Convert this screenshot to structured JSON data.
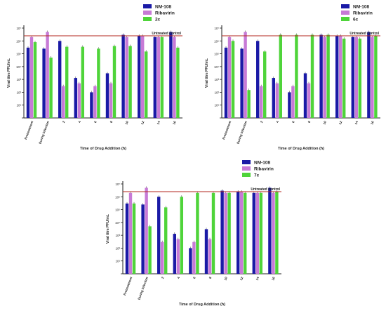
{
  "colors": {
    "nm108": "#1a1aa6",
    "ribavirin": "#c77ad6",
    "compound": "#4fd43a",
    "control": "#b3261e"
  },
  "chart_data": [
    {
      "type": "bar",
      "log_scale": true,
      "ylim": [
        1,
        10000000
      ],
      "yticks": [
        "10¹",
        "10²",
        "10³",
        "10⁴",
        "10⁵",
        "10⁶",
        "10⁷"
      ],
      "ylabel": "Viral titre PFU/mL",
      "xlabel": "Time of Drug Addition (h)",
      "categories": [
        "Pretreatment",
        "During infection",
        "2",
        "4",
        "6",
        "8",
        "10",
        "12",
        "14",
        "16"
      ],
      "reference_line": {
        "label": "Untreated control",
        "value": 2500000
      },
      "legend_position": "top-right",
      "series": [
        {
          "name": "NM-108",
          "values": [
            300000,
            250000,
            1000000,
            1300,
            100,
            3000,
            3000000,
            2500000,
            2000000,
            5000000
          ]
        },
        {
          "name": "Ribavirin",
          "values": [
            2000000,
            5000000,
            300,
            500,
            300,
            500,
            2000000,
            2500000,
            2000000,
            2000000
          ]
        },
        {
          "name": "2c",
          "values": [
            800000,
            50000,
            350000,
            350000,
            250000,
            400000,
            400000,
            150000,
            2000000,
            300000
          ]
        }
      ]
    },
    {
      "type": "bar",
      "log_scale": true,
      "ylim": [
        1,
        10000000
      ],
      "yticks": [
        "10¹",
        "10²",
        "10³",
        "10⁴",
        "10⁵",
        "10⁶",
        "10⁷"
      ],
      "ylabel": "Viral titre PFU/mL",
      "xlabel": "Time of Drug Addition (h)",
      "categories": [
        "Pretreatment",
        "During infection",
        "2",
        "4",
        "6",
        "8",
        "10",
        "12",
        "14",
        "16"
      ],
      "reference_line": {
        "label": "Untreated control",
        "value": 2500000
      },
      "legend_position": "top-right",
      "series": [
        {
          "name": "NM-108",
          "values": [
            300000,
            250000,
            1000000,
            1300,
            100,
            3000,
            3000000,
            2500000,
            2000000,
            5000000
          ]
        },
        {
          "name": "Ribavirin",
          "values": [
            2000000,
            5000000,
            300,
            500,
            300,
            500,
            2000000,
            2500000,
            2000000,
            2000000
          ]
        },
        {
          "name": "6c",
          "values": [
            1000000,
            150,
            150000,
            3000000,
            3000000,
            3000000,
            3000000,
            1500000,
            1500000,
            2500000
          ]
        }
      ]
    },
    {
      "type": "bar",
      "log_scale": true,
      "ylim": [
        1,
        10000000
      ],
      "yticks": [
        "10¹",
        "10²",
        "10³",
        "10⁴",
        "10⁵",
        "10⁶",
        "10⁷"
      ],
      "ylabel": "Viral titre PFU/mL",
      "xlabel": "Time of Drug Addition (h)",
      "categories": [
        "Pretreatment",
        "During infection",
        "2",
        "4",
        "6",
        "8",
        "10",
        "12",
        "14",
        "16"
      ],
      "reference_line": {
        "label": "Untreated control",
        "value": 2500000
      },
      "legend_position": "top-right",
      "series": [
        {
          "name": "NM-108",
          "values": [
            300000,
            250000,
            1000000,
            1300,
            100,
            3000,
            3000000,
            2500000,
            2000000,
            5000000
          ]
        },
        {
          "name": "Ribavirin",
          "values": [
            2000000,
            5000000,
            300,
            500,
            300,
            500,
            2000000,
            2500000,
            2000000,
            2000000
          ]
        },
        {
          "name": "7c",
          "values": [
            300000,
            5000,
            150000,
            1000000,
            2000000,
            2000000,
            2000000,
            2000000,
            2000000,
            2500000
          ]
        }
      ]
    }
  ]
}
